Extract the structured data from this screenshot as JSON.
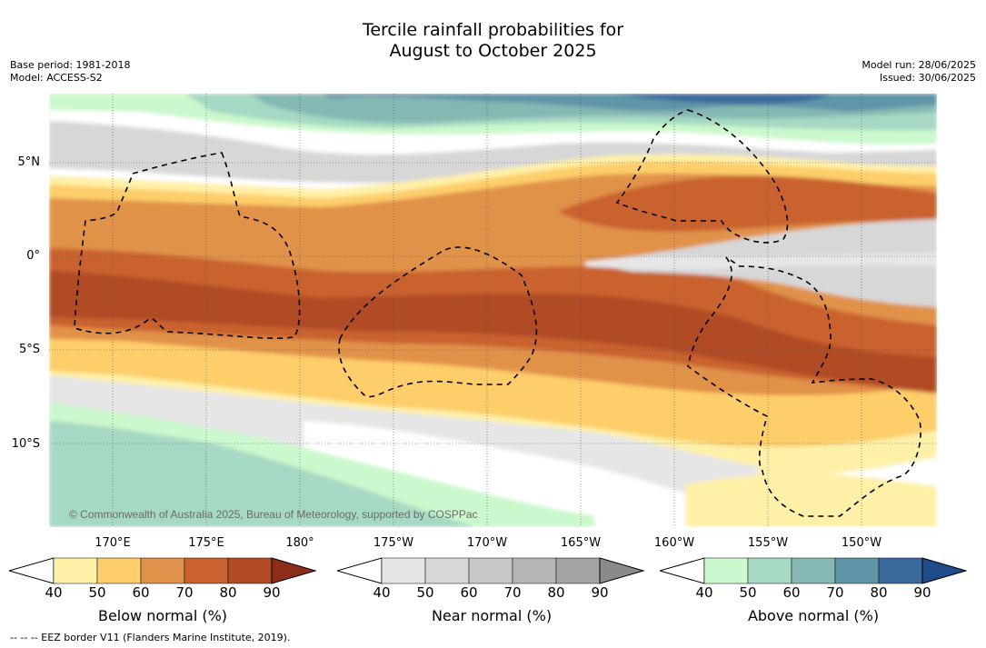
{
  "title": {
    "line1": "Tercile rainfall probabilities for",
    "line2": "August to October 2025"
  },
  "meta_left": [
    "Base period: 1981-2018",
    "Model: ACCESS-S2"
  ],
  "meta_right": [
    "Model run: 28/06/2025",
    "Issued: 30/06/2025"
  ],
  "map": {
    "lat_labels": [
      "5°N",
      "0°",
      "5°S",
      "10°S"
    ],
    "lon_labels": [
      "170°E",
      "175°E",
      "180°",
      "175°W",
      "170°W",
      "165°W",
      "160°W",
      "155°W",
      "150°W"
    ],
    "copyright": "© Commonwealth of Australia 2025, Bureau of Meteorology, supported by COSPPac",
    "colors": {
      "below": [
        "#fff0a8",
        "#fdce6b",
        "#e1924a",
        "#c9622f",
        "#b04b26",
        "#8e2d18"
      ],
      "near": [
        "#e6e6e6",
        "#d7d7d7",
        "#c8c8c8",
        "#b5b5b5",
        "#a3a3a3",
        "#8a8a8a"
      ],
      "above": [
        "#cbf8cc",
        "#a6d9c3",
        "#85b8b2",
        "#5e95a8",
        "#3a6a9c",
        "#1e4c8a"
      ]
    }
  },
  "colorbars": [
    {
      "label": "Below normal (%)",
      "ticks": [
        "40",
        "50",
        "60",
        "70",
        "80",
        "90"
      ]
    },
    {
      "label": "Near normal (%)",
      "ticks": [
        "40",
        "50",
        "60",
        "70",
        "80",
        "90"
      ]
    },
    {
      "label": "Above normal (%)",
      "ticks": [
        "40",
        "50",
        "60",
        "70",
        "80",
        "90"
      ]
    }
  ],
  "footer": "--  --  -- EEZ border V11 (Flanders Marine Institute, 2019)."
}
